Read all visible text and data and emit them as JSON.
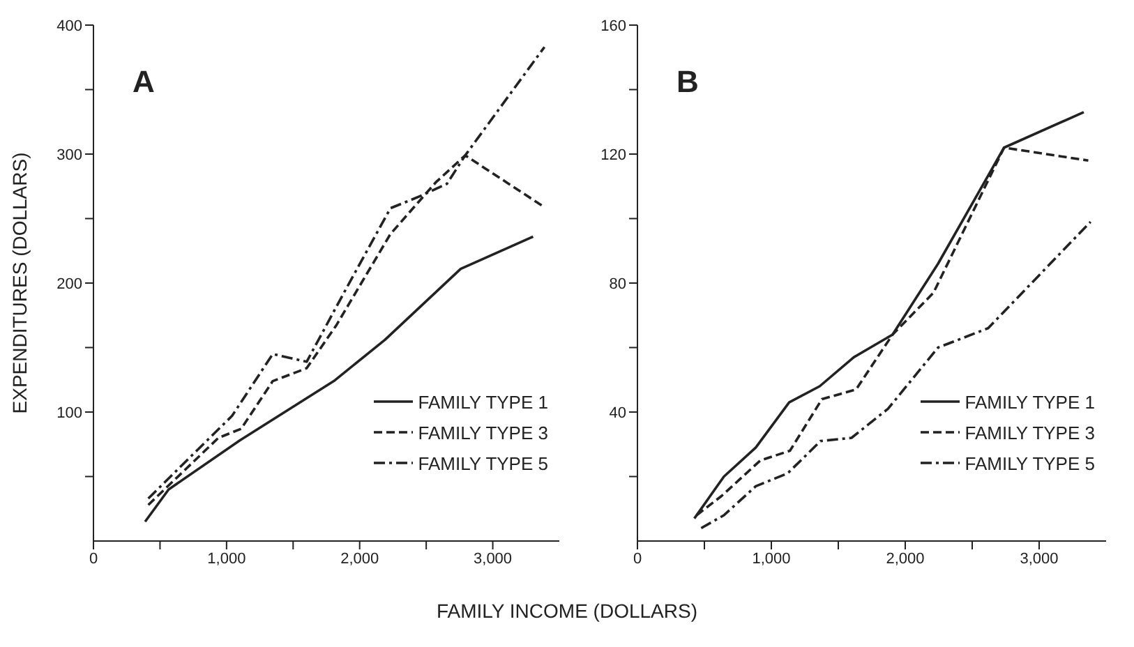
{
  "chart_data": [
    {
      "type": "line",
      "title": "A",
      "xlabel": "FAMILY INCOME (DOLLARS)",
      "ylabel": "EXPENDITURES (DOLLARS)",
      "xlim": [
        0,
        3500
      ],
      "ylim": [
        0,
        400
      ],
      "xticks": [
        {
          "value": 0,
          "label": "0"
        },
        {
          "value": 500,
          "label": null
        },
        {
          "value": 1000,
          "label": "1,000"
        },
        {
          "value": 1500,
          "label": null
        },
        {
          "value": 2000,
          "label": "2,000"
        },
        {
          "value": 2500,
          "label": null
        },
        {
          "value": 3000,
          "label": "3,000"
        }
      ],
      "yticks": [
        {
          "value": 50,
          "label": null
        },
        100,
        {
          "value": 150,
          "label": null
        },
        200,
        {
          "value": 250,
          "label": null
        },
        300,
        {
          "value": 350,
          "label": null
        },
        400
      ],
      "grid": false,
      "legend": "bottom right",
      "marker": "none",
      "series": [
        {
          "name": "FAMILY TYPE 1",
          "color": "#222222",
          "line_style": "solid",
          "x": [
            388,
            565,
            1099,
            1806,
            2190,
            2759,
            3303
          ],
          "values": [
            15,
            40,
            78,
            124,
            156,
            211,
            236
          ]
        },
        {
          "name": "FAMILY TYPE 3",
          "color": "#222222",
          "line_style": "dashed",
          "x": [
            412,
            939,
            1109,
            1347,
            1602,
            1823,
            2231,
            2571,
            2793,
            3371
          ],
          "values": [
            28,
            80,
            87,
            124,
            134,
            167,
            238,
            278,
            299,
            260
          ]
        },
        {
          "name": "FAMILY TYPE 5",
          "color": "#222222",
          "line_style": "dashdot",
          "x": [
            412,
            1041,
            1347,
            1602,
            1874,
            2231,
            2469,
            2656,
            2793,
            3388
          ],
          "values": [
            33,
            97,
            145,
            139,
            191,
            258,
            268,
            277,
            299,
            383
          ]
        }
      ]
    },
    {
      "type": "line",
      "title": "B",
      "xlim": [
        0,
        3500
      ],
      "ylim": [
        0,
        160
      ],
      "xticks": [
        {
          "value": 0,
          "label": "0"
        },
        {
          "value": 500,
          "label": null
        },
        {
          "value": 1000,
          "label": "1,000"
        },
        {
          "value": 1500,
          "label": null
        },
        {
          "value": 2000,
          "label": "2,000"
        },
        {
          "value": 2500,
          "label": null
        },
        {
          "value": 3000,
          "label": "3,000"
        }
      ],
      "yticks": [
        {
          "value": 20,
          "label": null
        },
        40,
        {
          "value": 60,
          "label": null
        },
        80,
        {
          "value": 100,
          "label": null
        },
        120,
        {
          "value": 140,
          "label": null
        },
        160
      ],
      "grid": false,
      "legend": "bottom right",
      "marker": "none",
      "series": [
        {
          "name": "FAMILY TYPE 1",
          "color": "#222222",
          "line_style": "solid",
          "x": [
            425,
            646,
            884,
            1133,
            1361,
            1616,
            1905,
            2245,
            2738,
            3333
          ],
          "values": [
            7,
            20,
            29,
            43,
            48,
            57,
            64,
            86,
            122,
            133
          ]
        },
        {
          "name": "FAMILY TYPE 3",
          "color": "#222222",
          "line_style": "dashed",
          "x": [
            442,
            629,
            918,
            1139,
            1378,
            1633,
            1905,
            2211,
            2738,
            3367
          ],
          "values": [
            8,
            14,
            25,
            28,
            44,
            47,
            64,
            77,
            122,
            118
          ]
        },
        {
          "name": "FAMILY TYPE 5",
          "color": "#222222",
          "line_style": "dashdot",
          "x": [
            476,
            646,
            884,
            1122,
            1367,
            1599,
            1871,
            2245,
            2619,
            3384
          ],
          "values": [
            4,
            8,
            17,
            21,
            31,
            32,
            41,
            60,
            66,
            99
          ]
        }
      ]
    }
  ]
}
